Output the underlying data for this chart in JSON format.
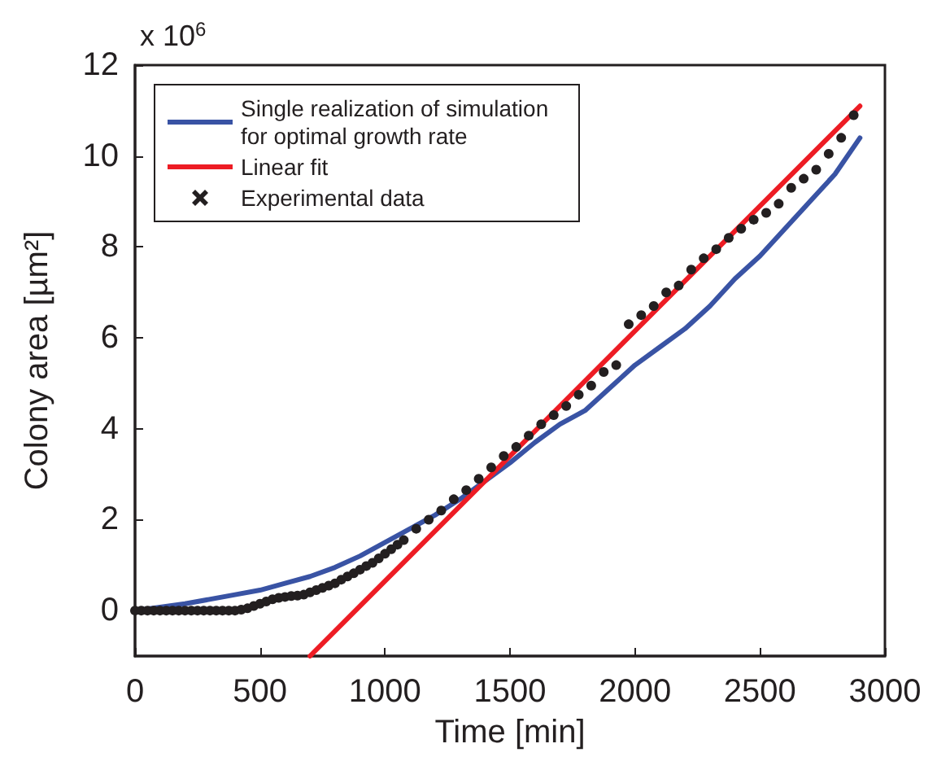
{
  "chart_data": {
    "type": "line",
    "xlabel": "Time [min]",
    "ylabel": "Colony area [µm²]",
    "annotations": [
      "x 10$^{6}$"
    ],
    "xlim": [
      0,
      3000
    ],
    "xticks": [
      0,
      500,
      1000,
      1500,
      2000,
      2500,
      3000
    ],
    "ylim": [
      -1,
      12
    ],
    "yticks": [
      0,
      2,
      4,
      6,
      8,
      10,
      12
    ],
    "legend": "top left",
    "series": [
      {
        "name": "Single realization of simulation for optimal growth rate",
        "color": "#3953a4",
        "x": [
          0,
          200,
          400,
          500,
          600,
          700,
          800,
          900,
          1000,
          1100,
          1200,
          1300,
          1400,
          1500,
          1600,
          1700,
          1800,
          1900,
          2000,
          2100,
          2200,
          2300,
          2400,
          2500,
          2600,
          2700,
          2800,
          2900
        ],
        "values": [
          0,
          0.15,
          0.35,
          0.45,
          0.6,
          0.75,
          0.95,
          1.2,
          1.5,
          1.8,
          2.1,
          2.45,
          2.85,
          3.25,
          3.7,
          4.1,
          4.4,
          4.9,
          5.4,
          5.8,
          6.2,
          6.7,
          7.3,
          7.8,
          8.4,
          9.0,
          9.6,
          10.4
        ]
      },
      {
        "name": "Linear fit",
        "color": "#ed1c24",
        "x": [
          700,
          2900
        ],
        "values": [
          -1,
          11.1
        ]
      },
      {
        "name": "Experimental data",
        "type": "scatter",
        "marker": "circle",
        "color": "#231f20",
        "x": [
          0,
          25,
          50,
          75,
          100,
          125,
          150,
          175,
          200,
          225,
          250,
          275,
          300,
          325,
          350,
          375,
          400,
          425,
          450,
          475,
          500,
          525,
          550,
          575,
          600,
          625,
          650,
          675,
          700,
          725,
          750,
          775,
          800,
          825,
          850,
          875,
          900,
          925,
          950,
          975,
          1000,
          1025,
          1050,
          1075,
          1125,
          1175,
          1225,
          1275,
          1325,
          1375,
          1425,
          1475,
          1525,
          1575,
          1625,
          1675,
          1725,
          1775,
          1825,
          1875,
          1925,
          1975,
          2025,
          2075,
          2125,
          2175,
          2225,
          2275,
          2325,
          2375,
          2425,
          2475,
          2525,
          2575,
          2625,
          2675,
          2725,
          2775,
          2825,
          2875
        ],
        "values": [
          0,
          0,
          0,
          0,
          0,
          0,
          0,
          0,
          0,
          0,
          0,
          0,
          0,
          0,
          0,
          0,
          0,
          0.02,
          0.05,
          0.1,
          0.15,
          0.2,
          0.25,
          0.28,
          0.3,
          0.32,
          0.33,
          0.35,
          0.4,
          0.45,
          0.5,
          0.55,
          0.6,
          0.68,
          0.75,
          0.82,
          0.9,
          0.98,
          1.05,
          1.15,
          1.25,
          1.35,
          1.45,
          1.55,
          1.8,
          2.0,
          2.2,
          2.45,
          2.65,
          2.9,
          3.15,
          3.4,
          3.6,
          3.85,
          4.1,
          4.3,
          4.5,
          4.75,
          4.95,
          5.25,
          5.4,
          6.3,
          6.5,
          6.7,
          7.0,
          7.15,
          7.5,
          7.75,
          7.95,
          8.2,
          8.4,
          8.6,
          8.75,
          8.95,
          9.3,
          9.5,
          9.7,
          10.05,
          10.4,
          10.9
        ]
      }
    ]
  }
}
